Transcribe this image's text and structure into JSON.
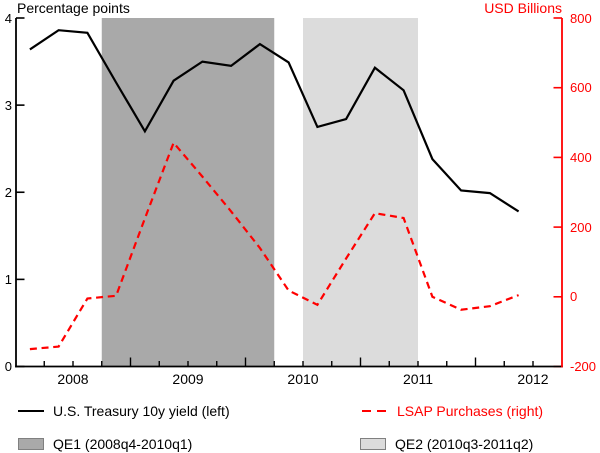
{
  "titles": {
    "left_axis_title": "Percentage points",
    "right_axis_title": "USD Billions"
  },
  "legend": [
    {
      "label": "U.S. Treasury 10y yield (left)",
      "swatch": "line",
      "color": "#000000"
    },
    {
      "label": "LSAP Purchases (right)",
      "swatch": "dashes",
      "color": "#ff0000"
    },
    {
      "label": "QE1 (2008q4-2010q1)",
      "swatch": "box",
      "color": "#a9a9a9"
    },
    {
      "label": "QE2 (2010q3-2011q2)",
      "swatch": "box",
      "color": "#dcdcdc"
    }
  ],
  "chart_data": {
    "type": "line",
    "title": "",
    "x_unit": "quarter",
    "categories": [
      "2008q1",
      "2008q2",
      "2008q3",
      "2008q4",
      "2009q1",
      "2009q2",
      "2009q3",
      "2009q4",
      "2010q1",
      "2010q2",
      "2010q3",
      "2010q4",
      "2011q1",
      "2011q2",
      "2011q3",
      "2011q4",
      "2012q1",
      "2012q2"
    ],
    "series": [
      {
        "name": "U.S. Treasury 10y yield (left)",
        "axis": "left",
        "style": "solid",
        "color": "#000000",
        "values": [
          3.64,
          3.86,
          3.83,
          3.26,
          2.7,
          3.28,
          3.5,
          3.45,
          3.7,
          3.49,
          2.75,
          2.84,
          3.43,
          3.17,
          2.38,
          2.02,
          1.99,
          1.78
        ]
      },
      {
        "name": "LSAP Purchases (right)",
        "axis": "right",
        "style": "dashed",
        "color": "#ff0000",
        "values": [
          -150,
          -143,
          -5,
          3,
          225,
          442,
          345,
          245,
          140,
          18,
          -23,
          110,
          240,
          226,
          0,
          -37,
          -27,
          5
        ]
      }
    ],
    "left_axis": {
      "title": "Percentage points",
      "min": 0,
      "max": 4,
      "ticks": [
        0,
        1,
        2,
        3,
        4
      ],
      "color": "#000000"
    },
    "right_axis": {
      "title": "USD Billions",
      "min": -200,
      "max": 800,
      "ticks": [
        -200,
        0,
        200,
        400,
        600,
        800
      ],
      "color": "#ff0000"
    },
    "x_axis": {
      "year_labels": [
        2008,
        2009,
        2010,
        2011,
        2012
      ],
      "first_quarter": "2008q1",
      "last_quarter": "2012q2"
    },
    "regions": [
      {
        "label": "QE1 (2008q4-2010q1)",
        "from": "2008q4",
        "to": "2010q1",
        "color": "#a9a9a9"
      },
      {
        "label": "QE2 (2010q3-2011q2)",
        "from": "2010q3",
        "to": "2011q2",
        "color": "#dcdcdc"
      }
    ],
    "grid": false,
    "legend_position": "bottom"
  }
}
